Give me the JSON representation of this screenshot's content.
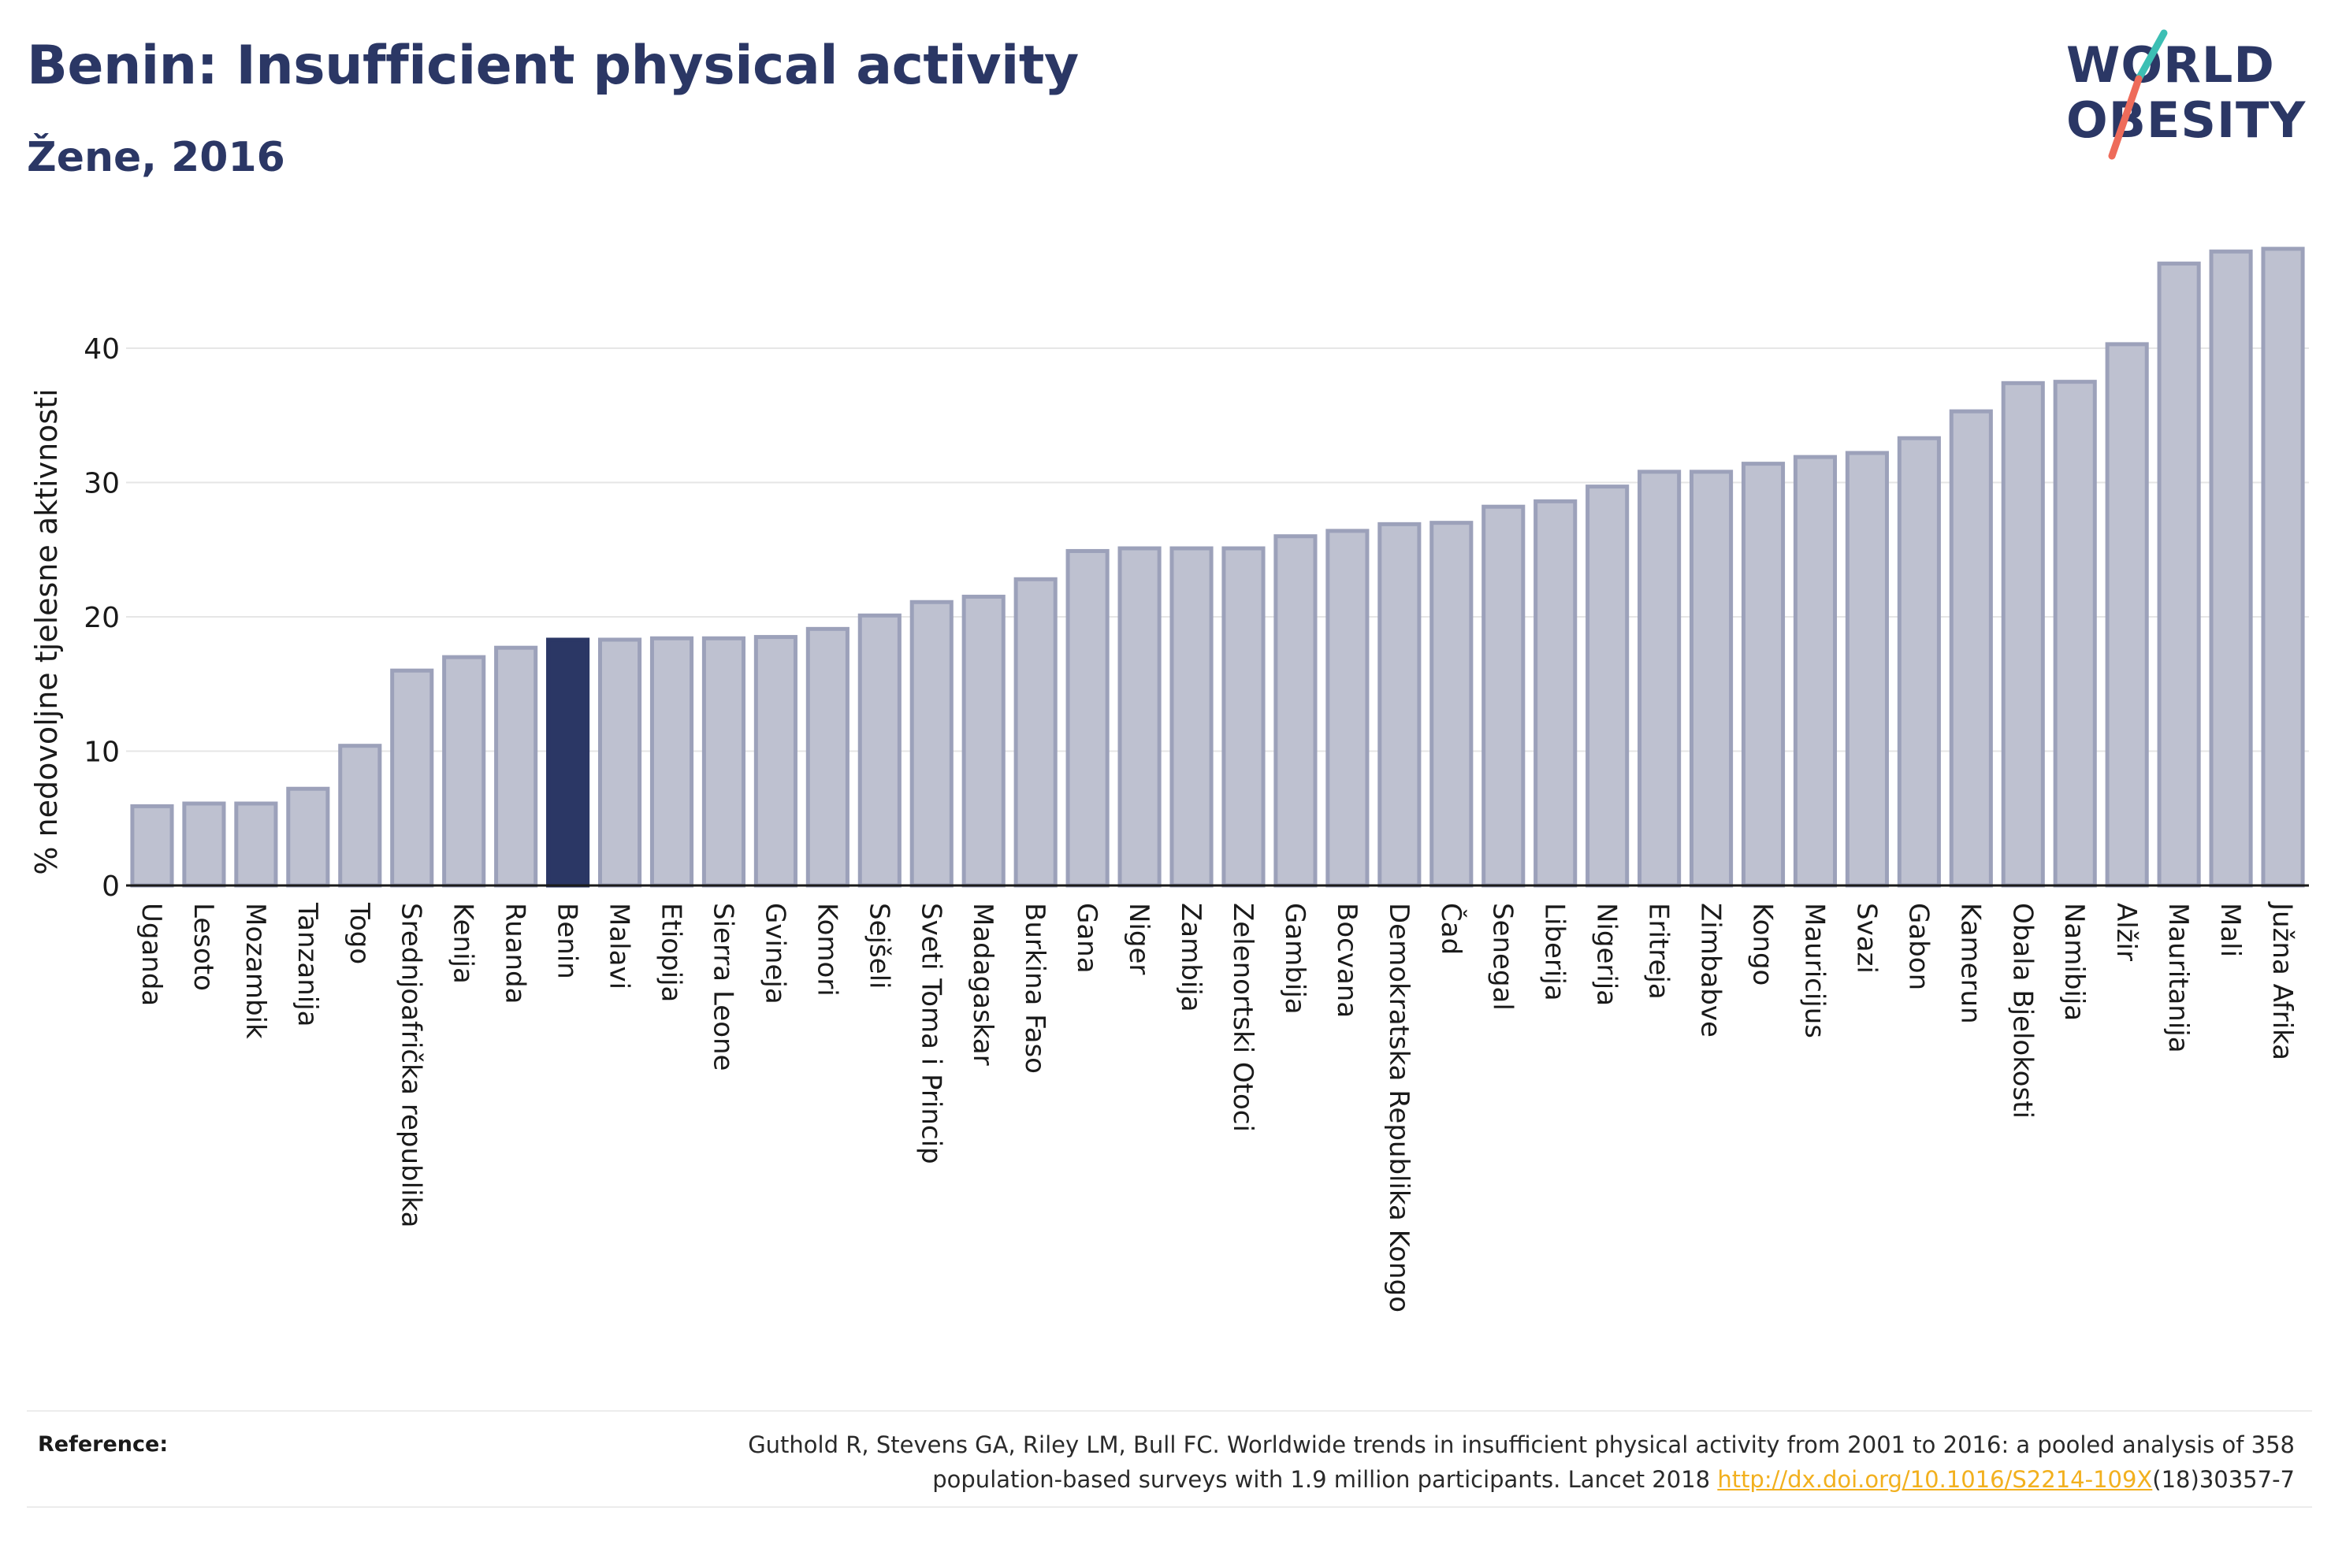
{
  "header": {
    "title": "Benin: Insufficient physical activity",
    "subtitle": "Žene, 2016"
  },
  "logo": {
    "line1": "WORLD",
    "line2": "OBESITY"
  },
  "reference": {
    "label": "Reference:",
    "text_line1": "Guthold R, Stevens GA, Riley LM, Bull FC. Worldwide trends in insufficient physical activity from 2001 to 2016: a pooled analysis of 358",
    "text_line2_prefix": "population-based surveys with 1.9 million participants. Lancet 2018 ",
    "link_text": "http://dx.doi.org/10.1016/S2214-109X",
    "text_line2_suffix": "(18)30357-7"
  },
  "colors": {
    "bar_fill": "#bec1d0",
    "bar_stroke": "#9ca1ba",
    "highlight": "#2b3765",
    "text": "#2b3765",
    "grid": "#e6e6e6",
    "logo_teal": "#3cbfb4",
    "logo_coral": "#ee6b5a"
  },
  "chart_data": {
    "type": "bar",
    "title": "Benin: Insufficient physical activity",
    "subtitle": "Žene, 2016",
    "ylabel": "% nedovoljne tjelesne aktivnosti",
    "xlabel": "",
    "ylim": [
      0,
      48
    ],
    "yticks": [
      0,
      10,
      20,
      30,
      40
    ],
    "grid": true,
    "highlight": "Benin",
    "categories": [
      "Uganda",
      "Lesoto",
      "Mozambik",
      "Tanzanija",
      "Togo",
      "Srednjoafrička republika",
      "Kenija",
      "Ruanda",
      "Benin",
      "Malavi",
      "Etiopija",
      "Sierra Leone",
      "Gvineja",
      "Komori",
      "Sejšeli",
      "Sveti Toma i Princip",
      "Madagaskar",
      "Burkina Faso",
      "Gana",
      "Niger",
      "Zambija",
      "Zelenortski Otoci",
      "Gambija",
      "Bocvana",
      "Demokratska Republika Kongo",
      "Čad",
      "Senegal",
      "Liberija",
      "Nigerija",
      "Eritreja",
      "Zimbabve",
      "Kongo",
      "Mauricijus",
      "Svazi",
      "Gabon",
      "Kamerun",
      "Obala Bjelokosti",
      "Namibija",
      "Alžir",
      "Mauritanija",
      "Mali",
      "Južna Afrika"
    ],
    "values": [
      5.9,
      6.1,
      6.1,
      7.2,
      10.4,
      16.0,
      17.0,
      17.7,
      18.3,
      18.3,
      18.4,
      18.4,
      18.5,
      19.1,
      20.1,
      21.1,
      21.5,
      22.8,
      24.9,
      25.1,
      25.1,
      25.1,
      26.0,
      26.4,
      26.9,
      27.0,
      28.2,
      28.6,
      29.7,
      30.8,
      30.8,
      31.4,
      31.9,
      32.2,
      33.3,
      35.3,
      37.4,
      37.5,
      40.3,
      46.3,
      47.2,
      47.4
    ]
  }
}
